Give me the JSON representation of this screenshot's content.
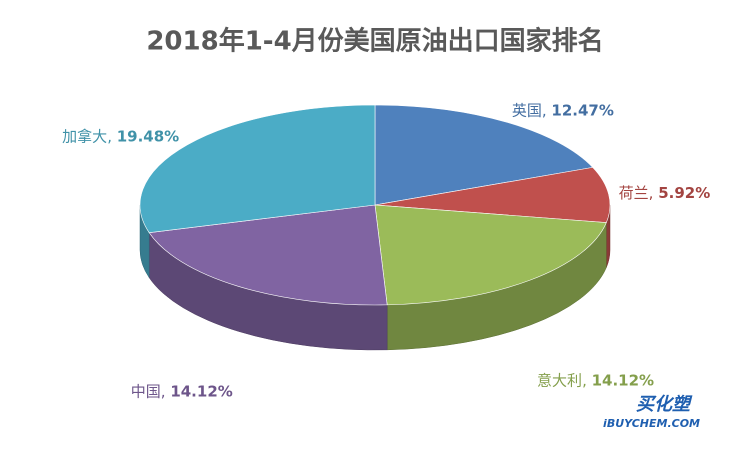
{
  "chart_data": {
    "type": "pie3d",
    "title": "2018年1-4月份美国原油出口国家排名",
    "categories": [
      "英国",
      "荷兰",
      "意大利",
      "中国",
      "加拿大"
    ],
    "values": [
      12.47,
      5.92,
      14.12,
      14.12,
      19.48
    ],
    "value_labels": [
      "12.47%",
      "5.92%",
      "14.12%",
      "14.12%",
      "19.48%"
    ],
    "label_separator": ", ",
    "colors": [
      "#4f81bd",
      "#c0504d",
      "#9bbb59",
      "#8064a2",
      "#4bacc6"
    ]
  },
  "watermark": {
    "brand": "买化塑",
    "site": "iBUYCHEM.COM"
  }
}
